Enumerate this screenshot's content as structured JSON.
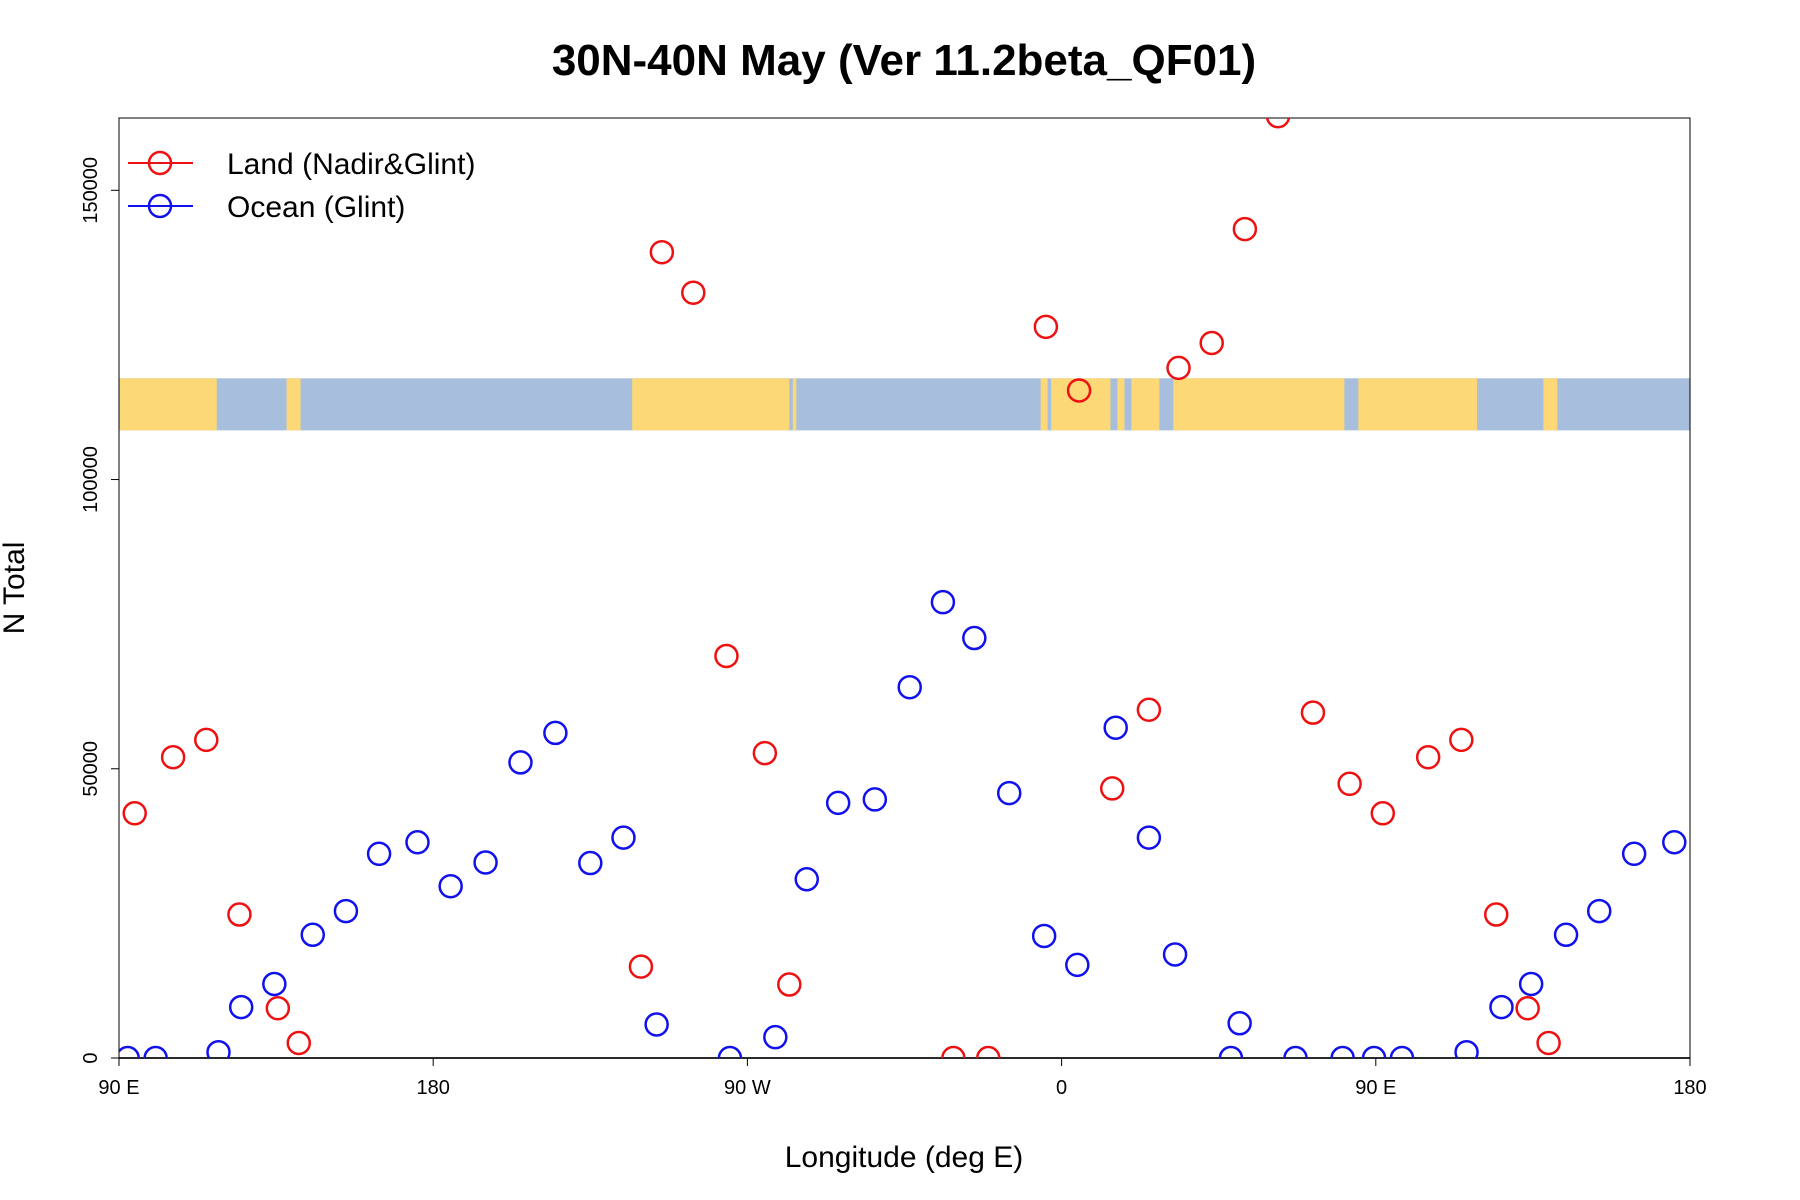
{
  "chart_data": {
    "type": "scatter",
    "title": "30N-40N May (Ver 11.2beta_QF01)",
    "xlabel": "Longitude (deg E)",
    "ylabel": "N Total",
    "xlim": [
      90,
      540
    ],
    "ylim": [
      0,
      162500
    ],
    "x_ticks": [
      {
        "value": 90,
        "label": "90 E"
      },
      {
        "value": 180,
        "label": "180"
      },
      {
        "value": 270,
        "label": "90 W"
      },
      {
        "value": 360,
        "label": "0"
      },
      {
        "value": 450,
        "label": "90 E"
      },
      {
        "value": 540,
        "label": "180"
      }
    ],
    "y_ticks": [
      {
        "value": 0,
        "label": "0"
      },
      {
        "value": 50000,
        "label": "50000"
      },
      {
        "value": 100000,
        "label": "100000"
      },
      {
        "value": 150000,
        "label": "150000"
      }
    ],
    "map_strip": {
      "ymin": 108500,
      "ymax": 117500,
      "land_color": "#FDD877",
      "ocean_color": "#A8BEDD"
    },
    "legend_position": "top-left",
    "series": [
      {
        "name": "Land (Nadir&Glint)",
        "color": "#EE1111",
        "points": [
          {
            "x": 94.5,
            "y": 42300
          },
          {
            "x": 105.5,
            "y": 52000
          },
          {
            "x": 115,
            "y": 55000
          },
          {
            "x": 124.5,
            "y": 24800
          },
          {
            "x": 135.5,
            "y": 8600
          },
          {
            "x": 141.5,
            "y": 2600
          },
          {
            "x": 239.5,
            "y": 15800
          },
          {
            "x": 245.5,
            "y": 139300
          },
          {
            "x": 254.5,
            "y": 132300
          },
          {
            "x": 264,
            "y": 69500
          },
          {
            "x": 275,
            "y": 52700
          },
          {
            "x": 282,
            "y": 12700
          },
          {
            "x": 329,
            "y": 0
          },
          {
            "x": 339,
            "y": 0
          },
          {
            "x": 355.5,
            "y": 126400
          },
          {
            "x": 365,
            "y": 115400
          },
          {
            "x": 374.5,
            "y": 46600
          },
          {
            "x": 385,
            "y": 60200
          },
          {
            "x": 393.5,
            "y": 119300
          },
          {
            "x": 403,
            "y": 123600
          },
          {
            "x": 412.5,
            "y": 143300
          },
          {
            "x": 422,
            "y": 162800
          },
          {
            "x": 432,
            "y": 59700
          },
          {
            "x": 442.5,
            "y": 47400
          },
          {
            "x": 452,
            "y": 42300
          },
          {
            "x": 465,
            "y": 52000
          },
          {
            "x": 474.5,
            "y": 55000
          },
          {
            "x": 484.5,
            "y": 24800
          },
          {
            "x": 493.5,
            "y": 8600
          },
          {
            "x": 499.5,
            "y": 2600
          }
        ]
      },
      {
        "name": "Ocean (Glint)",
        "color": "#1111EE",
        "points": [
          {
            "x": 92.5,
            "y": 0
          },
          {
            "x": 100.5,
            "y": 0
          },
          {
            "x": 118.5,
            "y": 1000
          },
          {
            "x": 125,
            "y": 8800
          },
          {
            "x": 134.5,
            "y": 12800
          },
          {
            "x": 145.5,
            "y": 21300
          },
          {
            "x": 155,
            "y": 25400
          },
          {
            "x": 164.5,
            "y": 35300
          },
          {
            "x": 175.5,
            "y": 37300
          },
          {
            "x": 185,
            "y": 29700
          },
          {
            "x": 195,
            "y": 33800
          },
          {
            "x": 205,
            "y": 51100
          },
          {
            "x": 215,
            "y": 56200
          },
          {
            "x": 225,
            "y": 33700
          },
          {
            "x": 234.5,
            "y": 38100
          },
          {
            "x": 244,
            "y": 5800
          },
          {
            "x": 265,
            "y": 0
          },
          {
            "x": 278,
            "y": 3600
          },
          {
            "x": 287,
            "y": 30900
          },
          {
            "x": 296,
            "y": 44100
          },
          {
            "x": 306.5,
            "y": 44700
          },
          {
            "x": 316.5,
            "y": 64100
          },
          {
            "x": 326,
            "y": 78800
          },
          {
            "x": 335,
            "y": 72600
          },
          {
            "x": 345,
            "y": 45800
          },
          {
            "x": 355,
            "y": 21100
          },
          {
            "x": 364.5,
            "y": 16100
          },
          {
            "x": 375.5,
            "y": 57100
          },
          {
            "x": 385,
            "y": 38100
          },
          {
            "x": 392.5,
            "y": 17900
          },
          {
            "x": 408.5,
            "y": 0
          },
          {
            "x": 411,
            "y": 6000
          },
          {
            "x": 427,
            "y": 0
          },
          {
            "x": 440.5,
            "y": 0
          },
          {
            "x": 449.5,
            "y": 0
          },
          {
            "x": 457.5,
            "y": 0
          },
          {
            "x": 476,
            "y": 1000
          },
          {
            "x": 486,
            "y": 8800
          },
          {
            "x": 494.5,
            "y": 12800
          },
          {
            "x": 504.5,
            "y": 21300
          },
          {
            "x": 514,
            "y": 25400
          },
          {
            "x": 524,
            "y": 35300
          },
          {
            "x": 535.5,
            "y": 37300
          }
        ]
      }
    ]
  }
}
